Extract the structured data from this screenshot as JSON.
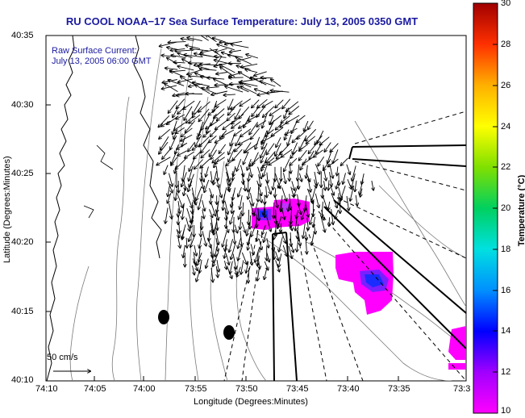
{
  "title": "RU COOL  NOAA−17  Sea Surface Temperature:  July 13, 2005 0350 GMT",
  "subtitle_line1": "Raw Surface Current:",
  "subtitle_line2": "July 13, 2005 06:00 GMT",
  "x_axis_label": "Longitude (Degrees:Minutes)",
  "y_axis_label": "Latitude (Degrees:Minutes)",
  "colorbar_label": "Temperature (°C)",
  "scale_vector_label": "50 cm/s",
  "x_ticks": [
    "74:10",
    "74:05",
    "74:00",
    "73:55",
    "73:50",
    "73:45",
    "73:40",
    "73:35",
    "73:3"
  ],
  "y_ticks": [
    "40:35",
    "40:30",
    "40:25",
    "40:20",
    "40:15",
    "40:10"
  ],
  "colorbar_ticks": [
    "30",
    "28",
    "26",
    "24",
    "22",
    "20",
    "18",
    "16",
    "14",
    "12",
    "10"
  ],
  "colors": {
    "title": "#1a1aa0",
    "magenta": "#ff00ff",
    "blue": "#1a2cff"
  }
}
